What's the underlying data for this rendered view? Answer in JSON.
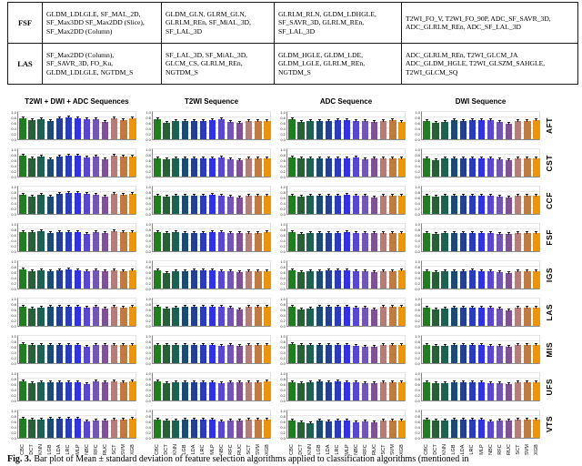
{
  "table": {
    "rows": [
      {
        "label": "FSF",
        "cells": [
          "GLDM_LDLGLE, SF_MAL_2D, SF_Max3DD SF_Max2DD (Slice), SF_Max2DD (Column)",
          "GLDM_GLN, GLRM_GLN, GLRLM_REn, SF_MiAL_3D, SF_LAL_3D",
          "GLRLM_RLN, GLDM_LDHGLE, SF_SAVR_3D, GLRLM_REn, SF_LAL_3D",
          "T2WI_FO_V, T2WI_FO_90P, ADC_SF_SAVR_3D, ADC_GLRLM_REn, ADC_SF_LAL_3D"
        ]
      },
      {
        "label": "LAS",
        "cells": [
          "SF_Max2DD (Column), SF_SAVR_3D, FO_Ku, GLDM_LDLGLE, NGTDM_S",
          "SF_LAL_3D, SF_MiAL_3D, GLCM_CS, GLRLM_REn, NGTDM_S",
          "GLDM_HGLE, GLDM_LDE, GLDM_LGLE, GLRLM_REn, NGTDM_S",
          "ADC_GLRLM_REn, T2WI_GLCM_JA ADC_GLDM_HGLE, T2WI_GLSZM_SAHGLE, T2WI_GLCM_SQ"
        ]
      }
    ]
  },
  "caption": {
    "tag": "Fig. 3.",
    "text": "Bar plot of Mean ± standard deviation of feature selection algorithms applied to classification algorithms (mentioned in"
  },
  "chart_data": {
    "type": "bar",
    "column_titles": [
      "T2WI + DWI + ADC Sequences",
      "T2WI Sequence",
      "ADC Sequence",
      "DWI Sequence"
    ],
    "row_labels": [
      "AFT",
      "CST",
      "CCF",
      "FSF",
      "IGS",
      "LAS",
      "MIS",
      "UFS",
      "VTS"
    ],
    "categories": [
      "CBC",
      "DCT",
      "KNN",
      "LGB",
      "LDA",
      "LRC",
      "MLP",
      "NBC",
      "RFC",
      "RUC",
      "SCT",
      "SVM",
      "XGB"
    ],
    "bar_colors": [
      "#227d22",
      "#265f38",
      "#1c6151",
      "#1c4a70",
      "#24408f",
      "#2c3cb8",
      "#3333dd",
      "#5a48cc",
      "#7157b2",
      "#7e5394",
      "#b17e79",
      "#bf7b41",
      "#ea950f"
    ],
    "yticks": [
      1.0,
      0.8,
      0.6,
      0.4,
      0.2,
      0.0
    ],
    "ylim": [
      0,
      1.05
    ],
    "grid": true,
    "error_bar": 0.03,
    "legend": "none",
    "values_order": "one array of 13 classifier means per column_title, per row_label",
    "values": {
      "AFT": [
        [
          0.76,
          0.69,
          0.73,
          0.66,
          0.75,
          0.78,
          0.76,
          0.71,
          0.73,
          0.64,
          0.77,
          0.7,
          0.75
        ],
        [
          0.71,
          0.6,
          0.67,
          0.66,
          0.67,
          0.67,
          0.69,
          0.71,
          0.62,
          0.6,
          0.66,
          0.67,
          0.67
        ],
        [
          0.71,
          0.63,
          0.66,
          0.66,
          0.67,
          0.68,
          0.7,
          0.65,
          0.67,
          0.61,
          0.65,
          0.68,
          0.64
        ],
        [
          0.67,
          0.58,
          0.64,
          0.68,
          0.66,
          0.69,
          0.68,
          0.68,
          0.61,
          0.56,
          0.67,
          0.67,
          0.68
        ]
      ],
      "CST": [
        [
          0.74,
          0.67,
          0.72,
          0.64,
          0.73,
          0.76,
          0.75,
          0.7,
          0.72,
          0.62,
          0.74,
          0.71,
          0.73
        ],
        [
          0.67,
          0.64,
          0.66,
          0.66,
          0.66,
          0.66,
          0.67,
          0.68,
          0.64,
          0.6,
          0.66,
          0.66,
          0.67
        ],
        [
          0.68,
          0.65,
          0.66,
          0.66,
          0.66,
          0.66,
          0.67,
          0.68,
          0.62,
          0.66,
          0.66,
          0.66,
          0.67
        ],
        [
          0.66,
          0.6,
          0.65,
          0.66,
          0.66,
          0.67,
          0.66,
          0.66,
          0.62,
          0.58,
          0.66,
          0.66,
          0.66
        ]
      ],
      "CCF": [
        [
          0.7,
          0.63,
          0.68,
          0.62,
          0.72,
          0.74,
          0.74,
          0.71,
          0.7,
          0.61,
          0.73,
          0.68,
          0.71
        ],
        [
          0.67,
          0.62,
          0.67,
          0.66,
          0.67,
          0.67,
          0.68,
          0.67,
          0.63,
          0.59,
          0.66,
          0.66,
          0.67
        ],
        [
          0.67,
          0.62,
          0.67,
          0.66,
          0.66,
          0.67,
          0.68,
          0.67,
          0.66,
          0.6,
          0.66,
          0.67,
          0.67
        ],
        [
          0.66,
          0.61,
          0.66,
          0.66,
          0.66,
          0.67,
          0.67,
          0.66,
          0.62,
          0.58,
          0.66,
          0.66,
          0.66
        ]
      ],
      "FSF": [
        [
          0.7,
          0.68,
          0.71,
          0.66,
          0.68,
          0.68,
          0.69,
          0.63,
          0.68,
          0.67,
          0.72,
          0.68,
          0.7
        ],
        [
          0.7,
          0.66,
          0.68,
          0.67,
          0.67,
          0.67,
          0.68,
          0.68,
          0.66,
          0.66,
          0.66,
          0.66,
          0.68
        ],
        [
          0.69,
          0.64,
          0.67,
          0.67,
          0.67,
          0.67,
          0.68,
          0.67,
          0.66,
          0.65,
          0.66,
          0.67,
          0.67
        ],
        [
          0.66,
          0.62,
          0.66,
          0.66,
          0.66,
          0.67,
          0.66,
          0.66,
          0.63,
          0.61,
          0.66,
          0.66,
          0.66
        ]
      ],
      "IGS": [
        [
          0.68,
          0.62,
          0.66,
          0.64,
          0.66,
          0.68,
          0.67,
          0.64,
          0.66,
          0.61,
          0.65,
          0.64,
          0.66
        ],
        [
          0.66,
          0.55,
          0.63,
          0.63,
          0.65,
          0.66,
          0.66,
          0.61,
          0.62,
          0.58,
          0.63,
          0.63,
          0.64
        ],
        [
          0.66,
          0.6,
          0.64,
          0.64,
          0.65,
          0.66,
          0.66,
          0.62,
          0.64,
          0.6,
          0.64,
          0.64,
          0.65
        ],
        [
          0.64,
          0.58,
          0.62,
          0.64,
          0.64,
          0.65,
          0.64,
          0.63,
          0.6,
          0.57,
          0.64,
          0.64,
          0.64
        ]
      ],
      "LAS": [
        [
          0.69,
          0.62,
          0.67,
          0.68,
          0.68,
          0.68,
          0.68,
          0.65,
          0.68,
          0.62,
          0.68,
          0.67,
          0.68
        ],
        [
          0.69,
          0.62,
          0.66,
          0.7,
          0.69,
          0.7,
          0.7,
          0.68,
          0.67,
          0.6,
          0.7,
          0.7,
          0.69
        ],
        [
          0.68,
          0.6,
          0.63,
          0.7,
          0.68,
          0.7,
          0.69,
          0.67,
          0.65,
          0.59,
          0.7,
          0.7,
          0.68
        ],
        [
          0.66,
          0.59,
          0.64,
          0.66,
          0.66,
          0.67,
          0.66,
          0.65,
          0.61,
          0.57,
          0.66,
          0.66,
          0.66
        ]
      ],
      "MIS": [
        [
          0.68,
          0.67,
          0.66,
          0.65,
          0.65,
          0.65,
          0.65,
          0.6,
          0.67,
          0.66,
          0.66,
          0.66,
          0.67
        ],
        [
          0.67,
          0.65,
          0.65,
          0.65,
          0.65,
          0.65,
          0.65,
          0.61,
          0.66,
          0.64,
          0.66,
          0.66,
          0.66
        ],
        [
          0.68,
          0.66,
          0.66,
          0.66,
          0.66,
          0.66,
          0.67,
          0.63,
          0.6,
          0.6,
          0.67,
          0.67,
          0.67
        ],
        [
          0.66,
          0.64,
          0.64,
          0.65,
          0.65,
          0.65,
          0.65,
          0.61,
          0.62,
          0.6,
          0.66,
          0.66,
          0.66
        ]
      ],
      "UFS": [
        [
          0.7,
          0.61,
          0.66,
          0.66,
          0.65,
          0.65,
          0.66,
          0.6,
          0.68,
          0.67,
          0.68,
          0.65,
          0.69
        ],
        [
          0.68,
          0.63,
          0.66,
          0.66,
          0.66,
          0.66,
          0.66,
          0.61,
          0.67,
          0.66,
          0.67,
          0.65,
          0.68
        ],
        [
          0.67,
          0.64,
          0.65,
          0.68,
          0.67,
          0.68,
          0.67,
          0.66,
          0.63,
          0.61,
          0.66,
          0.66,
          0.67
        ],
        [
          0.66,
          0.62,
          0.64,
          0.66,
          0.66,
          0.66,
          0.66,
          0.64,
          0.62,
          0.6,
          0.66,
          0.66,
          0.66
        ]
      ],
      "VTS": [
        [
          0.68,
          0.66,
          0.66,
          0.68,
          0.68,
          0.68,
          0.68,
          0.6,
          0.64,
          0.64,
          0.66,
          0.66,
          0.68
        ],
        [
          0.66,
          0.62,
          0.64,
          0.66,
          0.66,
          0.66,
          0.66,
          0.58,
          0.62,
          0.62,
          0.66,
          0.66,
          0.66
        ],
        [
          0.62,
          0.55,
          0.54,
          0.62,
          0.6,
          0.62,
          0.62,
          0.55,
          0.6,
          0.56,
          0.62,
          0.62,
          0.62
        ],
        [
          0.66,
          0.64,
          0.64,
          0.66,
          0.65,
          0.66,
          0.66,
          0.6,
          0.63,
          0.62,
          0.66,
          0.66,
          0.66
        ]
      ]
    }
  }
}
